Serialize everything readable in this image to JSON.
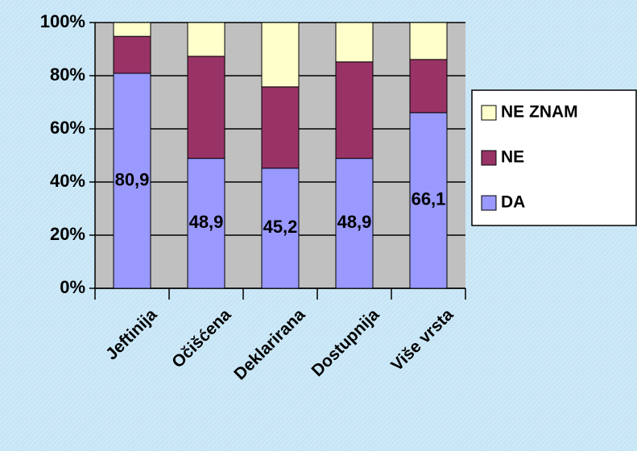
{
  "chart_data": {
    "type": "stacked_bar",
    "categories": [
      "Jeftinija",
      "Očišćena",
      "Deklarirana",
      "Dostupnija",
      "Više vrsta"
    ],
    "series": [
      {
        "name": "DA",
        "color": "#9999ff",
        "values": [
          80.9,
          48.9,
          45.2,
          48.9,
          66.1
        ],
        "value_labels": [
          "80,9",
          "48,9",
          "45,2",
          "48,9",
          "66,1"
        ]
      },
      {
        "name": "NE",
        "color": "#993366",
        "values": [
          13.9,
          38.4,
          30.6,
          36.3,
          20.0
        ]
      },
      {
        "name": "NE ZNAM",
        "color": "#ffffcc",
        "values": [
          5.2,
          12.7,
          24.2,
          14.8,
          13.9
        ]
      }
    ],
    "ylim": [
      0,
      100
    ],
    "yticks": [
      {
        "value": 0,
        "label": "0%"
      },
      {
        "value": 20,
        "label": "20%"
      },
      {
        "value": 40,
        "label": "40%"
      },
      {
        "value": 60,
        "label": "60%"
      },
      {
        "value": 80,
        "label": "80%"
      },
      {
        "value": 100,
        "label": "100%"
      }
    ],
    "grid": true,
    "legend": "right"
  }
}
